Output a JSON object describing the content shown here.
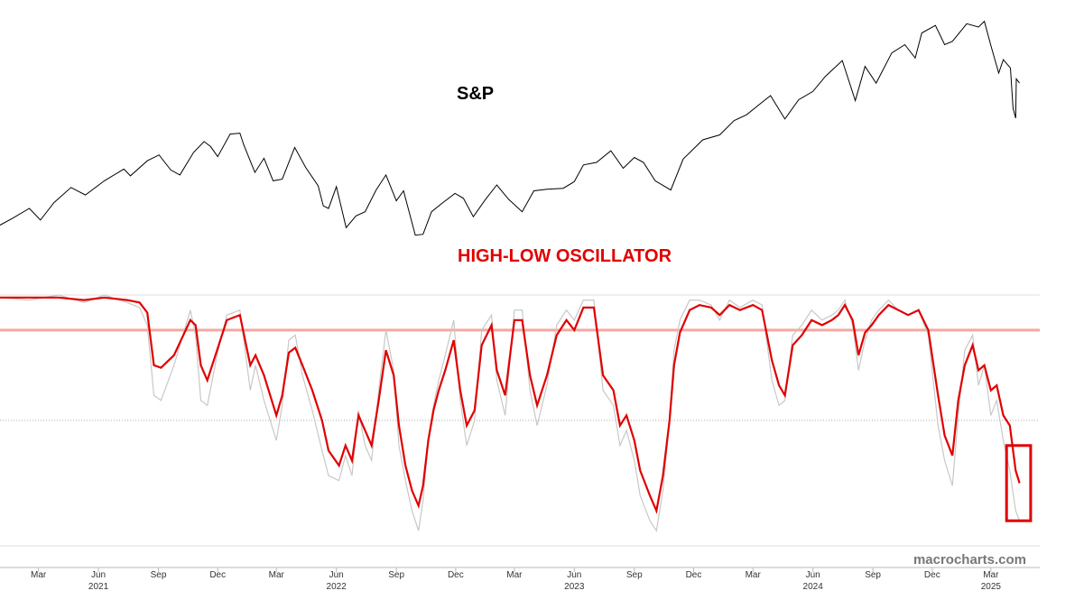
{
  "colors": {
    "price": "#000000",
    "oscillator": "#e00000",
    "raw_oscillator": "#c8c8c8",
    "upper_threshold": "#f4a9a0",
    "highlight_box": "#e00000",
    "grid": "#d0d0d0",
    "midline": "#aaaaaa"
  },
  "watermark": "macrocharts.com",
  "chart_data": [
    {
      "type": "line",
      "title": "S&P",
      "series": [
        {
          "x": [
            "2021-01-01",
            "2021-01-20",
            "2021-02-15",
            "2021-03-04",
            "2021-03-25",
            "2021-04-20",
            "2021-05-12",
            "2021-06-10",
            "2021-07-10",
            "2021-07-20",
            "2021-08-15",
            "2021-09-02",
            "2021-09-20",
            "2021-10-04",
            "2021-10-25",
            "2021-11-10",
            "2021-11-20",
            "2021-12-01",
            "2021-12-20",
            "2022-01-04",
            "2022-01-10",
            "2022-01-27",
            "2022-02-10",
            "2022-02-24",
            "2022-03-10",
            "2022-03-29",
            "2022-04-15",
            "2022-05-04",
            "2022-05-12",
            "2022-05-20",
            "2022-06-01",
            "2022-06-16",
            "2022-07-01",
            "2022-07-15",
            "2022-08-01",
            "2022-08-16",
            "2022-09-01",
            "2022-09-12",
            "2022-09-30",
            "2022-10-12",
            "2022-10-25",
            "2022-11-10",
            "2022-11-30",
            "2022-12-13",
            "2022-12-28",
            "2023-01-15",
            "2023-02-02",
            "2023-02-20",
            "2023-03-13",
            "2023-03-31",
            "2023-04-20",
            "2023-05-15",
            "2023-06-01",
            "2023-06-15",
            "2023-07-05",
            "2023-07-27",
            "2023-08-15",
            "2023-09-01",
            "2023-09-15",
            "2023-10-03",
            "2023-10-27",
            "2023-11-15",
            "2023-12-15",
            "2024-01-10",
            "2024-02-01",
            "2024-02-20",
            "2024-03-15",
            "2024-03-28",
            "2024-04-19",
            "2024-05-10",
            "2024-06-01",
            "2024-06-20",
            "2024-07-16",
            "2024-08-05",
            "2024-08-20",
            "2024-09-06",
            "2024-09-30",
            "2024-10-20",
            "2024-11-05",
            "2024-11-15",
            "2024-12-06",
            "2024-12-20",
            "2025-01-01",
            "2025-01-23",
            "2025-02-10",
            "2025-02-19",
            "2025-03-01",
            "2025-03-13",
            "2025-03-20",
            "2025-03-31",
            "2025-04-04",
            "2025-04-08",
            "2025-04-09",
            "2025-04-14"
          ],
          "y": [
            3700,
            3780,
            3900,
            3760,
            3970,
            4150,
            4060,
            4230,
            4370,
            4290,
            4470,
            4540,
            4360,
            4300,
            4570,
            4700,
            4640,
            4520,
            4790,
            4800,
            4660,
            4330,
            4500,
            4230,
            4250,
            4630,
            4390,
            4170,
            3930,
            3900,
            4160,
            3670,
            3810,
            3860,
            4120,
            4300,
            3990,
            4110,
            3580,
            3590,
            3860,
            3960,
            4080,
            4020,
            3800,
            4000,
            4180,
            4010,
            3860,
            4110,
            4130,
            4140,
            4220,
            4420,
            4450,
            4590,
            4380,
            4510,
            4450,
            4230,
            4120,
            4490,
            4720,
            4780,
            4950,
            5020,
            5170,
            5250,
            4970,
            5200,
            5300,
            5480,
            5670,
            5190,
            5600,
            5400,
            5760,
            5860,
            5700,
            6000,
            6090,
            5860,
            5900,
            6110,
            6070,
            6140,
            5850,
            5520,
            5680,
            5580,
            5100,
            4980,
            5450,
            5400
          ]
        }
      ]
    },
    {
      "type": "line",
      "title": "HIGH-LOW OSCILLATOR",
      "ylim": [
        0,
        100
      ],
      "threshold": 86,
      "midline": 50,
      "series": [
        {
          "role": "smoothed",
          "x": [
            "2021-01-01",
            "2021-02-15",
            "2021-04-01",
            "2021-05-10",
            "2021-06-10",
            "2021-07-15",
            "2021-08-03",
            "2021-08-15",
            "2021-08-25",
            "2021-09-05",
            "2021-09-25",
            "2021-10-20",
            "2021-10-28",
            "2021-11-05",
            "2021-11-15",
            "2021-11-30",
            "2021-12-15",
            "2022-01-04",
            "2022-01-20",
            "2022-01-28",
            "2022-02-10",
            "2022-03-01",
            "2022-03-10",
            "2022-03-20",
            "2022-03-30",
            "2022-04-10",
            "2022-04-25",
            "2022-05-10",
            "2022-05-20",
            "2022-06-05",
            "2022-06-15",
            "2022-06-25",
            "2022-07-05",
            "2022-07-15",
            "2022-07-25",
            "2022-08-05",
            "2022-08-16",
            "2022-08-28",
            "2022-09-05",
            "2022-09-15",
            "2022-09-25",
            "2022-10-05",
            "2022-10-12",
            "2022-10-20",
            "2022-10-28",
            "2022-11-05",
            "2022-11-15",
            "2022-11-28",
            "2022-12-08",
            "2022-12-18",
            "2022-12-30",
            "2023-01-10",
            "2023-01-25",
            "2023-02-02",
            "2023-02-15",
            "2023-03-01",
            "2023-03-13",
            "2023-03-25",
            "2023-04-05",
            "2023-04-20",
            "2023-05-05",
            "2023-05-20",
            "2023-06-01",
            "2023-06-15",
            "2023-07-01",
            "2023-07-15",
            "2023-07-31",
            "2023-08-10",
            "2023-08-20",
            "2023-09-01",
            "2023-09-10",
            "2023-09-25",
            "2023-10-05",
            "2023-10-15",
            "2023-10-25",
            "2023-11-01",
            "2023-11-10",
            "2023-11-25",
            "2023-12-10",
            "2023-12-28",
            "2024-01-10",
            "2024-01-25",
            "2024-02-10",
            "2024-03-01",
            "2024-03-15",
            "2024-03-30",
            "2024-04-10",
            "2024-04-19",
            "2024-05-01",
            "2024-05-15",
            "2024-05-30",
            "2024-06-15",
            "2024-06-30",
            "2024-07-10",
            "2024-07-20",
            "2024-08-01",
            "2024-08-10",
            "2024-08-20",
            "2024-08-30",
            "2024-09-10",
            "2024-09-25",
            "2024-10-10",
            "2024-10-25",
            "2024-11-10",
            "2024-11-25",
            "2024-12-10",
            "2024-12-20",
            "2025-01-01",
            "2025-01-10",
            "2025-01-20",
            "2025-02-01",
            "2025-02-10",
            "2025-02-19",
            "2025-03-01",
            "2025-03-10",
            "2025-03-20",
            "2025-03-30",
            "2025-04-08",
            "2025-04-14"
          ],
          "y": [
            99,
            99,
            99,
            98,
            99,
            98,
            97,
            93,
            72,
            71,
            76,
            90,
            88,
            72,
            66,
            78,
            90,
            92,
            72,
            76,
            68,
            52,
            60,
            77,
            79,
            72,
            62,
            50,
            38,
            32,
            40,
            34,
            52,
            46,
            40,
            58,
            78,
            68,
            48,
            32,
            22,
            16,
            24,
            42,
            54,
            62,
            70,
            82,
            62,
            48,
            54,
            80,
            88,
            70,
            60,
            90,
            90,
            68,
            56,
            68,
            84,
            90,
            86,
            95,
            95,
            68,
            62,
            48,
            52,
            42,
            30,
            20,
            14,
            28,
            50,
            72,
            85,
            94,
            96,
            95,
            92,
            96,
            94,
            96,
            94,
            74,
            64,
            60,
            80,
            84,
            90,
            88,
            90,
            92,
            96,
            90,
            76,
            85,
            88,
            92,
            96,
            94,
            92,
            94,
            86,
            60,
            44,
            36,
            58,
            72,
            80,
            70,
            72,
            62,
            64,
            52,
            48,
            30,
            25
          ]
        },
        {
          "role": "raw",
          "x": [
            "2021-01-01",
            "2021-02-15",
            "2021-04-01",
            "2021-05-10",
            "2021-06-10",
            "2021-07-15",
            "2021-08-03",
            "2021-08-15",
            "2021-08-25",
            "2021-09-05",
            "2021-09-25",
            "2021-10-20",
            "2021-10-28",
            "2021-11-05",
            "2021-11-15",
            "2021-11-30",
            "2021-12-15",
            "2022-01-04",
            "2022-01-20",
            "2022-01-28",
            "2022-02-10",
            "2022-03-01",
            "2022-03-10",
            "2022-03-20",
            "2022-03-30",
            "2022-04-10",
            "2022-04-25",
            "2022-05-10",
            "2022-05-20",
            "2022-06-05",
            "2022-06-15",
            "2022-06-25",
            "2022-07-05",
            "2022-07-15",
            "2022-07-25",
            "2022-08-05",
            "2022-08-16",
            "2022-08-28",
            "2022-09-05",
            "2022-09-15",
            "2022-09-25",
            "2022-10-05",
            "2022-10-12",
            "2022-10-20",
            "2022-10-28",
            "2022-11-05",
            "2022-11-15",
            "2022-11-28",
            "2022-12-08",
            "2022-12-18",
            "2022-12-30",
            "2023-01-10",
            "2023-01-25",
            "2023-02-02",
            "2023-02-15",
            "2023-03-01",
            "2023-03-13",
            "2023-03-25",
            "2023-04-05",
            "2023-04-20",
            "2023-05-05",
            "2023-05-20",
            "2023-06-01",
            "2023-06-15",
            "2023-07-01",
            "2023-07-15",
            "2023-07-31",
            "2023-08-10",
            "2023-08-20",
            "2023-09-01",
            "2023-09-10",
            "2023-09-25",
            "2023-10-05",
            "2023-10-15",
            "2023-10-25",
            "2023-11-01",
            "2023-11-10",
            "2023-11-25",
            "2023-12-10",
            "2023-12-28",
            "2024-01-10",
            "2024-01-25",
            "2024-02-10",
            "2024-03-01",
            "2024-03-15",
            "2024-03-30",
            "2024-04-10",
            "2024-04-19",
            "2024-05-01",
            "2024-05-15",
            "2024-05-30",
            "2024-06-15",
            "2024-06-30",
            "2024-07-10",
            "2024-07-20",
            "2024-08-01",
            "2024-08-10",
            "2024-08-20",
            "2024-08-30",
            "2024-09-10",
            "2024-09-25",
            "2024-10-10",
            "2024-10-25",
            "2024-11-10",
            "2024-11-25",
            "2024-12-10",
            "2024-12-20",
            "2025-01-01",
            "2025-01-10",
            "2025-01-20",
            "2025-02-01",
            "2025-02-10",
            "2025-02-19",
            "2025-03-01",
            "2025-03-10",
            "2025-03-20",
            "2025-03-30",
            "2025-04-08",
            "2025-04-14"
          ],
          "y": [
            99,
            98,
            100,
            97,
            100,
            97,
            95,
            88,
            60,
            58,
            72,
            94,
            84,
            58,
            56,
            76,
            92,
            94,
            62,
            72,
            58,
            42,
            56,
            82,
            84,
            68,
            54,
            38,
            28,
            26,
            36,
            28,
            54,
            40,
            34,
            62,
            86,
            70,
            40,
            26,
            14,
            6,
            18,
            42,
            56,
            66,
            76,
            90,
            58,
            40,
            50,
            86,
            92,
            66,
            52,
            94,
            94,
            62,
            48,
            64,
            88,
            94,
            90,
            98,
            98,
            62,
            56,
            40,
            46,
            34,
            20,
            10,
            6,
            22,
            50,
            78,
            90,
            98,
            98,
            96,
            90,
            98,
            95,
            98,
            96,
            66,
            56,
            58,
            84,
            88,
            94,
            90,
            92,
            94,
            98,
            88,
            70,
            82,
            90,
            94,
            98,
            94,
            92,
            94,
            84,
            48,
            34,
            24,
            52,
            78,
            84,
            64,
            72,
            52,
            58,
            42,
            30,
            14,
            10
          ]
        }
      ]
    }
  ],
  "x_axis": {
    "months": [
      {
        "date": "2021-03-01",
        "label": "Mar"
      },
      {
        "date": "2021-06-01",
        "label": "Jun"
      },
      {
        "date": "2021-09-01",
        "label": "Sep"
      },
      {
        "date": "2021-12-01",
        "label": "Dec"
      },
      {
        "date": "2022-03-01",
        "label": "Mar"
      },
      {
        "date": "2022-06-01",
        "label": "Jun"
      },
      {
        "date": "2022-09-01",
        "label": "Sep"
      },
      {
        "date": "2022-12-01",
        "label": "Dec"
      },
      {
        "date": "2023-03-01",
        "label": "Mar"
      },
      {
        "date": "2023-06-01",
        "label": "Jun"
      },
      {
        "date": "2023-09-01",
        "label": "Sep"
      },
      {
        "date": "2023-12-01",
        "label": "Dec"
      },
      {
        "date": "2024-03-01",
        "label": "Mar"
      },
      {
        "date": "2024-06-01",
        "label": "Jun"
      },
      {
        "date": "2024-09-01",
        "label": "Sep"
      },
      {
        "date": "2024-12-01",
        "label": "Dec"
      },
      {
        "date": "2025-03-01",
        "label": "Mar"
      }
    ],
    "years": [
      {
        "date": "2021-06-01",
        "label": "2021"
      },
      {
        "date": "2022-06-01",
        "label": "2022"
      },
      {
        "date": "2023-06-01",
        "label": "2023"
      },
      {
        "date": "2024-06-01",
        "label": "2024"
      },
      {
        "date": "2025-03-01",
        "label": "2025"
      }
    ],
    "range": [
      "2021-01-01",
      "2025-05-15"
    ]
  },
  "highlight": {
    "from": "2025-03-25",
    "to": "2025-05-01",
    "y_range": [
      10,
      40
    ]
  }
}
